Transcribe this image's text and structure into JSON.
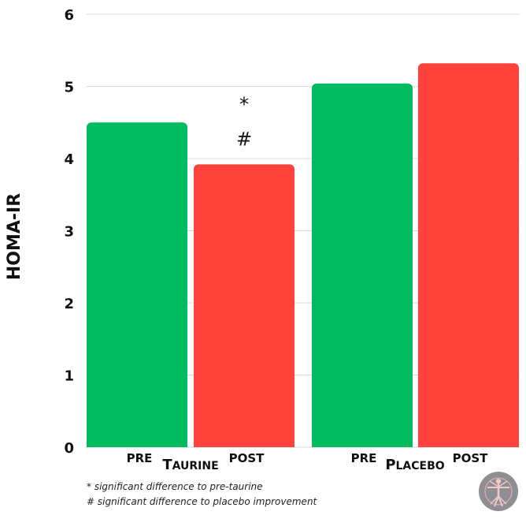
{
  "chart_data": {
    "type": "bar",
    "ylabel": "HOMA-IR",
    "ylim": [
      0,
      6
    ],
    "yticks": [
      0,
      1,
      2,
      3,
      4,
      5,
      6
    ],
    "grid": true,
    "groups": [
      {
        "name": "Taurine",
        "bars": [
          {
            "label": "PRE",
            "value": 4.5,
            "color": "#00bb5f"
          },
          {
            "label": "POST",
            "value": 3.92,
            "color": "#ff433c",
            "annotations": [
              "*",
              "#"
            ]
          }
        ]
      },
      {
        "name": "Placebo",
        "bars": [
          {
            "label": "PRE",
            "value": 5.04,
            "color": "#00bb5f"
          },
          {
            "label": "POST",
            "value": 5.32,
            "color": "#ff433c"
          }
        ]
      }
    ]
  },
  "footnotes": [
    "* significant difference to pre-taurine",
    "# significant difference to placebo improvement"
  ],
  "logo_icon": "vitruvian-man-logo-icon"
}
